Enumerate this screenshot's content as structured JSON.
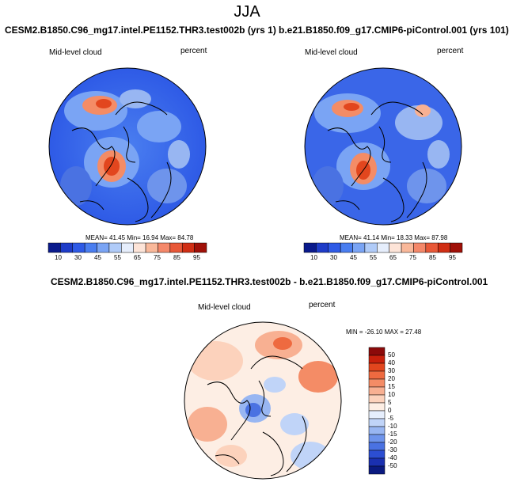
{
  "page": {
    "season": "JJA"
  },
  "panels": [
    {
      "run": "CESM2.B1850.C96_mg17.intel.PE1152.THR3.test002b (yrs 1)",
      "variable": "Mid-level cloud",
      "units": "percent",
      "stats": "MEAN= 41.45  Min= 16.94  Max= 84.78"
    },
    {
      "run": "b.e21.B1850.f09_g17.CMIP6-piControl.001 (yrs 101)",
      "variable": "Mid-level cloud",
      "units": "percent",
      "stats": "MEAN= 41.14  Min= 18.33  Max= 87.98"
    }
  ],
  "diff_panel": {
    "run": "CESM2.B1850.C96_mg17.intel.PE1152.THR3.test002b - b.e21.B1850.f09_g17.CMIP6-piControl.001",
    "variable": "Mid-level cloud",
    "units": "percent",
    "stats": "MIN = -26.10 MAX = 27.48"
  },
  "colorbar_horizontal": {
    "labels": [
      "10",
      "30",
      "45",
      "55",
      "65",
      "75",
      "85",
      "95"
    ],
    "colors": [
      "#0a1a8c",
      "#1e3cc8",
      "#2e5ae6",
      "#4a7ef0",
      "#7aa4f4",
      "#b0cbf8",
      "#e6eefc",
      "#fde4d8",
      "#f9b89a",
      "#f4886a",
      "#e85838",
      "#d02e14",
      "#a01008"
    ]
  },
  "colorbar_vertical": {
    "labels": [
      "50",
      "40",
      "30",
      "20",
      "15",
      "10",
      "5",
      "0",
      "-5",
      "-10",
      "-15",
      "-20",
      "-30",
      "-40",
      "-50"
    ],
    "colors": [
      "#8c0a0a",
      "#c8200c",
      "#e2461e",
      "#ee6a40",
      "#f48c66",
      "#f8b092",
      "#fcd2bc",
      "#fdeee4",
      "#e6eefc",
      "#c0d4f8",
      "#98b6f2",
      "#6e94ec",
      "#4a72e2",
      "#2c4ed2",
      "#1a30b0",
      "#0a1a80"
    ]
  }
}
